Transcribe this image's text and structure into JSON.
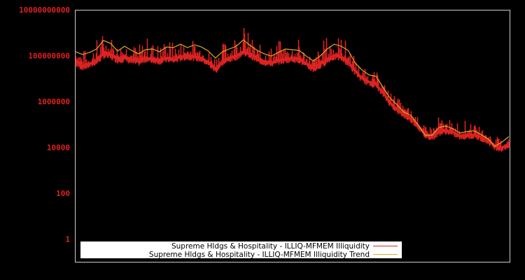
{
  "chart_data": {
    "type": "line",
    "title": "",
    "xlabel": "",
    "ylabel": "",
    "yscale": "log",
    "ylim": [
      0.5,
      10000000000
    ],
    "grid": false,
    "legend_position": "bottom-center-inside",
    "background": "#000000",
    "frame_color": "#cccccc",
    "y_ticks": [
      {
        "label": "10000000000",
        "value": 10000000000
      },
      {
        "label": "100000000",
        "value": 100000000
      },
      {
        "label": "1000000",
        "value": 1000000
      },
      {
        "label": "10000",
        "value": 10000
      },
      {
        "label": "100",
        "value": 100
      },
      {
        "label": "1",
        "value": 1
      }
    ],
    "x_index": [
      0,
      1,
      2,
      3,
      4,
      5,
      6,
      7,
      8,
      9,
      10,
      11,
      12,
      13,
      14,
      15,
      16,
      17,
      18,
      19,
      20,
      21,
      22,
      23,
      24,
      25,
      26,
      27,
      28,
      29,
      30,
      31,
      32,
      33,
      34,
      35,
      36,
      37,
      38,
      39,
      40,
      41,
      42,
      43,
      44,
      45,
      46,
      47,
      48,
      49,
      50,
      51,
      52,
      53,
      54,
      55,
      56,
      57,
      58,
      59,
      60,
      61,
      62
    ],
    "series": [
      {
        "name": "Supreme Hldgs & Hospitality - ILLIQ-MFMEM Illiquidity",
        "color": "#dd2222",
        "log10_values": [
          7.85,
          7.6,
          7.7,
          7.85,
          8.2,
          8.1,
          7.95,
          8.0,
          7.9,
          7.8,
          7.95,
          7.9,
          7.85,
          7.95,
          7.9,
          8.0,
          8.05,
          8.0,
          7.95,
          7.75,
          7.5,
          7.8,
          7.95,
          8.05,
          8.25,
          8.1,
          7.9,
          7.8,
          7.75,
          7.85,
          7.9,
          7.95,
          7.9,
          7.7,
          7.55,
          7.7,
          7.9,
          8.05,
          8.0,
          7.8,
          7.4,
          7.05,
          6.9,
          6.8,
          6.4,
          6.0,
          5.7,
          5.5,
          5.3,
          5.0,
          4.6,
          4.55,
          4.75,
          4.8,
          4.7,
          4.55,
          4.6,
          4.6,
          4.5,
          4.35,
          4.1,
          4.05,
          4.2
        ],
        "log10_low": [
          7.45,
          7.35,
          7.45,
          7.6,
          7.85,
          7.8,
          7.65,
          7.7,
          7.6,
          7.55,
          7.7,
          7.65,
          7.6,
          7.7,
          7.65,
          7.75,
          7.8,
          7.75,
          7.7,
          7.5,
          7.2,
          7.55,
          7.7,
          7.8,
          8.0,
          7.85,
          7.65,
          7.55,
          7.5,
          7.6,
          7.65,
          7.7,
          7.65,
          7.4,
          7.25,
          7.4,
          7.65,
          7.8,
          7.75,
          7.5,
          7.1,
          6.8,
          6.65,
          6.55,
          6.15,
          5.75,
          5.45,
          5.25,
          5.05,
          4.75,
          4.35,
          4.3,
          4.5,
          4.55,
          4.45,
          4.3,
          4.35,
          4.35,
          4.25,
          4.1,
          3.85,
          3.8,
          3.95
        ],
        "log10_high": [
          9.0,
          8.3,
          8.3,
          8.8,
          9.1,
          9.0,
          8.5,
          8.9,
          8.6,
          8.5,
          8.9,
          8.7,
          8.6,
          8.9,
          8.6,
          8.7,
          8.8,
          8.7,
          8.8,
          8.3,
          8.2,
          8.6,
          9.0,
          9.2,
          9.4,
          8.9,
          8.5,
          8.5,
          8.5,
          8.7,
          8.6,
          8.6,
          8.8,
          8.3,
          8.0,
          8.5,
          9.0,
          9.1,
          8.9,
          8.6,
          7.9,
          7.5,
          7.3,
          7.3,
          6.9,
          6.5,
          6.2,
          5.9,
          5.7,
          5.3,
          4.9,
          5.1,
          5.4,
          5.3,
          5.1,
          5.4,
          5.1,
          5.0,
          4.9,
          4.7,
          4.5,
          4.4,
          4.5
        ]
      },
      {
        "name": "Supreme Hldgs & Hospitality - ILLIQ-MFMEM Illiquidity Trend",
        "color": "#ddaa22",
        "log10_values": [
          8.17,
          8.05,
          8.14,
          8.29,
          8.66,
          8.54,
          8.2,
          8.41,
          8.23,
          8.08,
          8.26,
          8.29,
          8.17,
          8.38,
          8.35,
          8.5,
          8.35,
          8.47,
          8.38,
          8.2,
          7.89,
          8.17,
          8.29,
          8.41,
          8.69,
          8.44,
          8.23,
          8.08,
          7.98,
          8.14,
          8.29,
          8.26,
          8.23,
          7.98,
          7.77,
          7.98,
          8.29,
          8.5,
          8.41,
          8.23,
          7.68,
          7.37,
          7.16,
          7.1,
          6.61,
          6.15,
          5.85,
          5.54,
          5.39,
          4.99,
          4.53,
          4.53,
          4.87,
          4.93,
          4.81,
          4.62,
          4.69,
          4.72,
          4.56,
          4.38,
          4.05,
          4.23,
          4.47
        ]
      }
    ],
    "legend": [
      {
        "label": "Supreme Hldgs & Hospitality - ILLIQ-MFMEM Illiquidity",
        "color": "#dd2222"
      },
      {
        "label": "Supreme Hldgs & Hospitality - ILLIQ-MFMEM Illiquidity Trend",
        "color": "#ddaa22"
      }
    ]
  }
}
